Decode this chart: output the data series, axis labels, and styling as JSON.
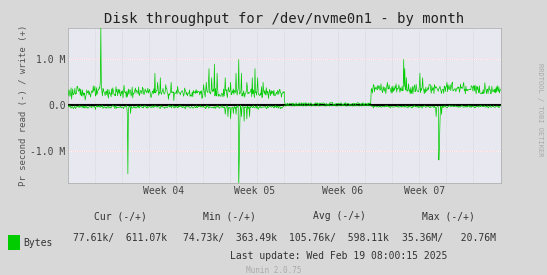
{
  "title": "Disk throughput for /dev/nvme0n1 - by month",
  "ylabel": "Pr second read (-) / write (+)",
  "right_label": "RRDTOOL / TOBI OETIKER",
  "x_tick_labels": [
    "Week 04",
    "Week 05",
    "Week 06",
    "Week 07"
  ],
  "ylim": [
    -1700000,
    1700000
  ],
  "yticks": [
    -1000000,
    0,
    1000000
  ],
  "ytick_labels": [
    "-1.0 M",
    "0.0",
    "1.0 M"
  ],
  "bg_color": "#d8d8d8",
  "plot_bg_color": "#e8e8f0",
  "grid_color_h": "#ffffff",
  "grid_color_v": "#cccccc",
  "line_color": "#00cc00",
  "zero_line_color": "#000000",
  "red_line_color": "#ff9999",
  "legend_label": "Bytes",
  "legend_color": "#00cc00",
  "cur_label": "Cur (-/+)",
  "cur_val": "77.61k/  611.07k",
  "min_label": "Min (-/+)",
  "min_val": "74.73k/  363.49k",
  "avg_label": "Avg (-/+)",
  "avg_val": "105.76k/  598.11k",
  "max_label": "Max (-/+)",
  "max_val": "35.36M/   20.76M",
  "footer_update": "Last update: Wed Feb 19 08:00:15 2025",
  "munin_label": "Munin 2.0.75",
  "title_fontsize": 10,
  "axis_fontsize": 7,
  "footer_fontsize": 7
}
